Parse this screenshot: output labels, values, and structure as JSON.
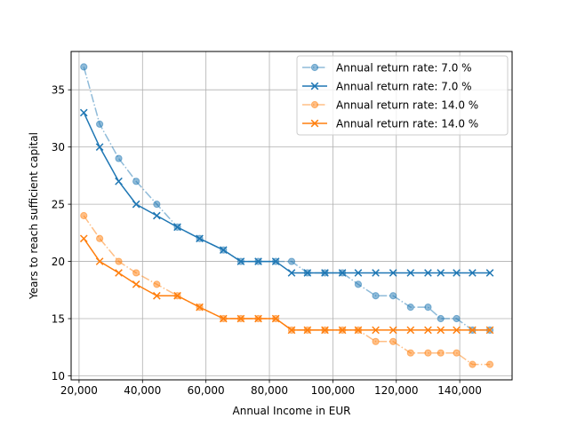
{
  "chart_data": {
    "type": "line",
    "title": "",
    "xlabel": "Annual Income in EUR",
    "ylabel": "Years to reach sufficient capital",
    "xlim": [
      17500,
      156500
    ],
    "ylim": [
      9.65,
      38.35
    ],
    "xticks": [
      20000,
      40000,
      60000,
      80000,
      100000,
      120000,
      140000
    ],
    "xtick_labels": [
      "20,000",
      "40,000",
      "60,000",
      "80,000",
      "100,000",
      "120,000",
      "140,000"
    ],
    "yticks": [
      10,
      15,
      20,
      25,
      30,
      35
    ],
    "ytick_labels": [
      "10",
      "15",
      "20",
      "25",
      "30",
      "35"
    ],
    "grid": true,
    "legend_position": "top-right",
    "x": [
      21500,
      26500,
      32500,
      38000,
      44500,
      51000,
      58000,
      65500,
      71000,
      76500,
      82000,
      87000,
      92000,
      97500,
      103000,
      108000,
      113500,
      119000,
      124500,
      130000,
      134000,
      139000,
      144000,
      149500
    ],
    "series": [
      {
        "name": "Annual return rate: 7.0 %",
        "color": "#1f77b4",
        "alpha": 0.5,
        "linestyle": "dashdot",
        "marker": "circle",
        "values": [
          37,
          32,
          29,
          27,
          25,
          23,
          22,
          21,
          20,
          20,
          20,
          20,
          19,
          19,
          19,
          18,
          17,
          17,
          16,
          16,
          15,
          15,
          14,
          14
        ]
      },
      {
        "name": "Annual return rate: 7.0 %",
        "color": "#1f77b4",
        "alpha": 1.0,
        "linestyle": "solid",
        "marker": "x",
        "values": [
          33,
          30,
          27,
          25,
          24,
          23,
          22,
          21,
          20,
          20,
          20,
          19,
          19,
          19,
          19,
          19,
          19,
          19,
          19,
          19,
          19,
          19,
          19,
          19
        ]
      },
      {
        "name": "Annual return rate: 14.0 %",
        "color": "#ff7f0e",
        "alpha": 0.5,
        "linestyle": "dashdot",
        "marker": "circle",
        "values": [
          24,
          22,
          20,
          19,
          18,
          17,
          16,
          15,
          15,
          15,
          15,
          14,
          14,
          14,
          14,
          14,
          13,
          13,
          12,
          12,
          12,
          12,
          11,
          11
        ]
      },
      {
        "name": "Annual return rate: 14.0 %",
        "color": "#ff7f0e",
        "alpha": 1.0,
        "linestyle": "solid",
        "marker": "x",
        "values": [
          22,
          20,
          19,
          18,
          17,
          17,
          16,
          15,
          15,
          15,
          15,
          14,
          14,
          14,
          14,
          14,
          14,
          14,
          14,
          14,
          14,
          14,
          14,
          14
        ]
      }
    ]
  }
}
